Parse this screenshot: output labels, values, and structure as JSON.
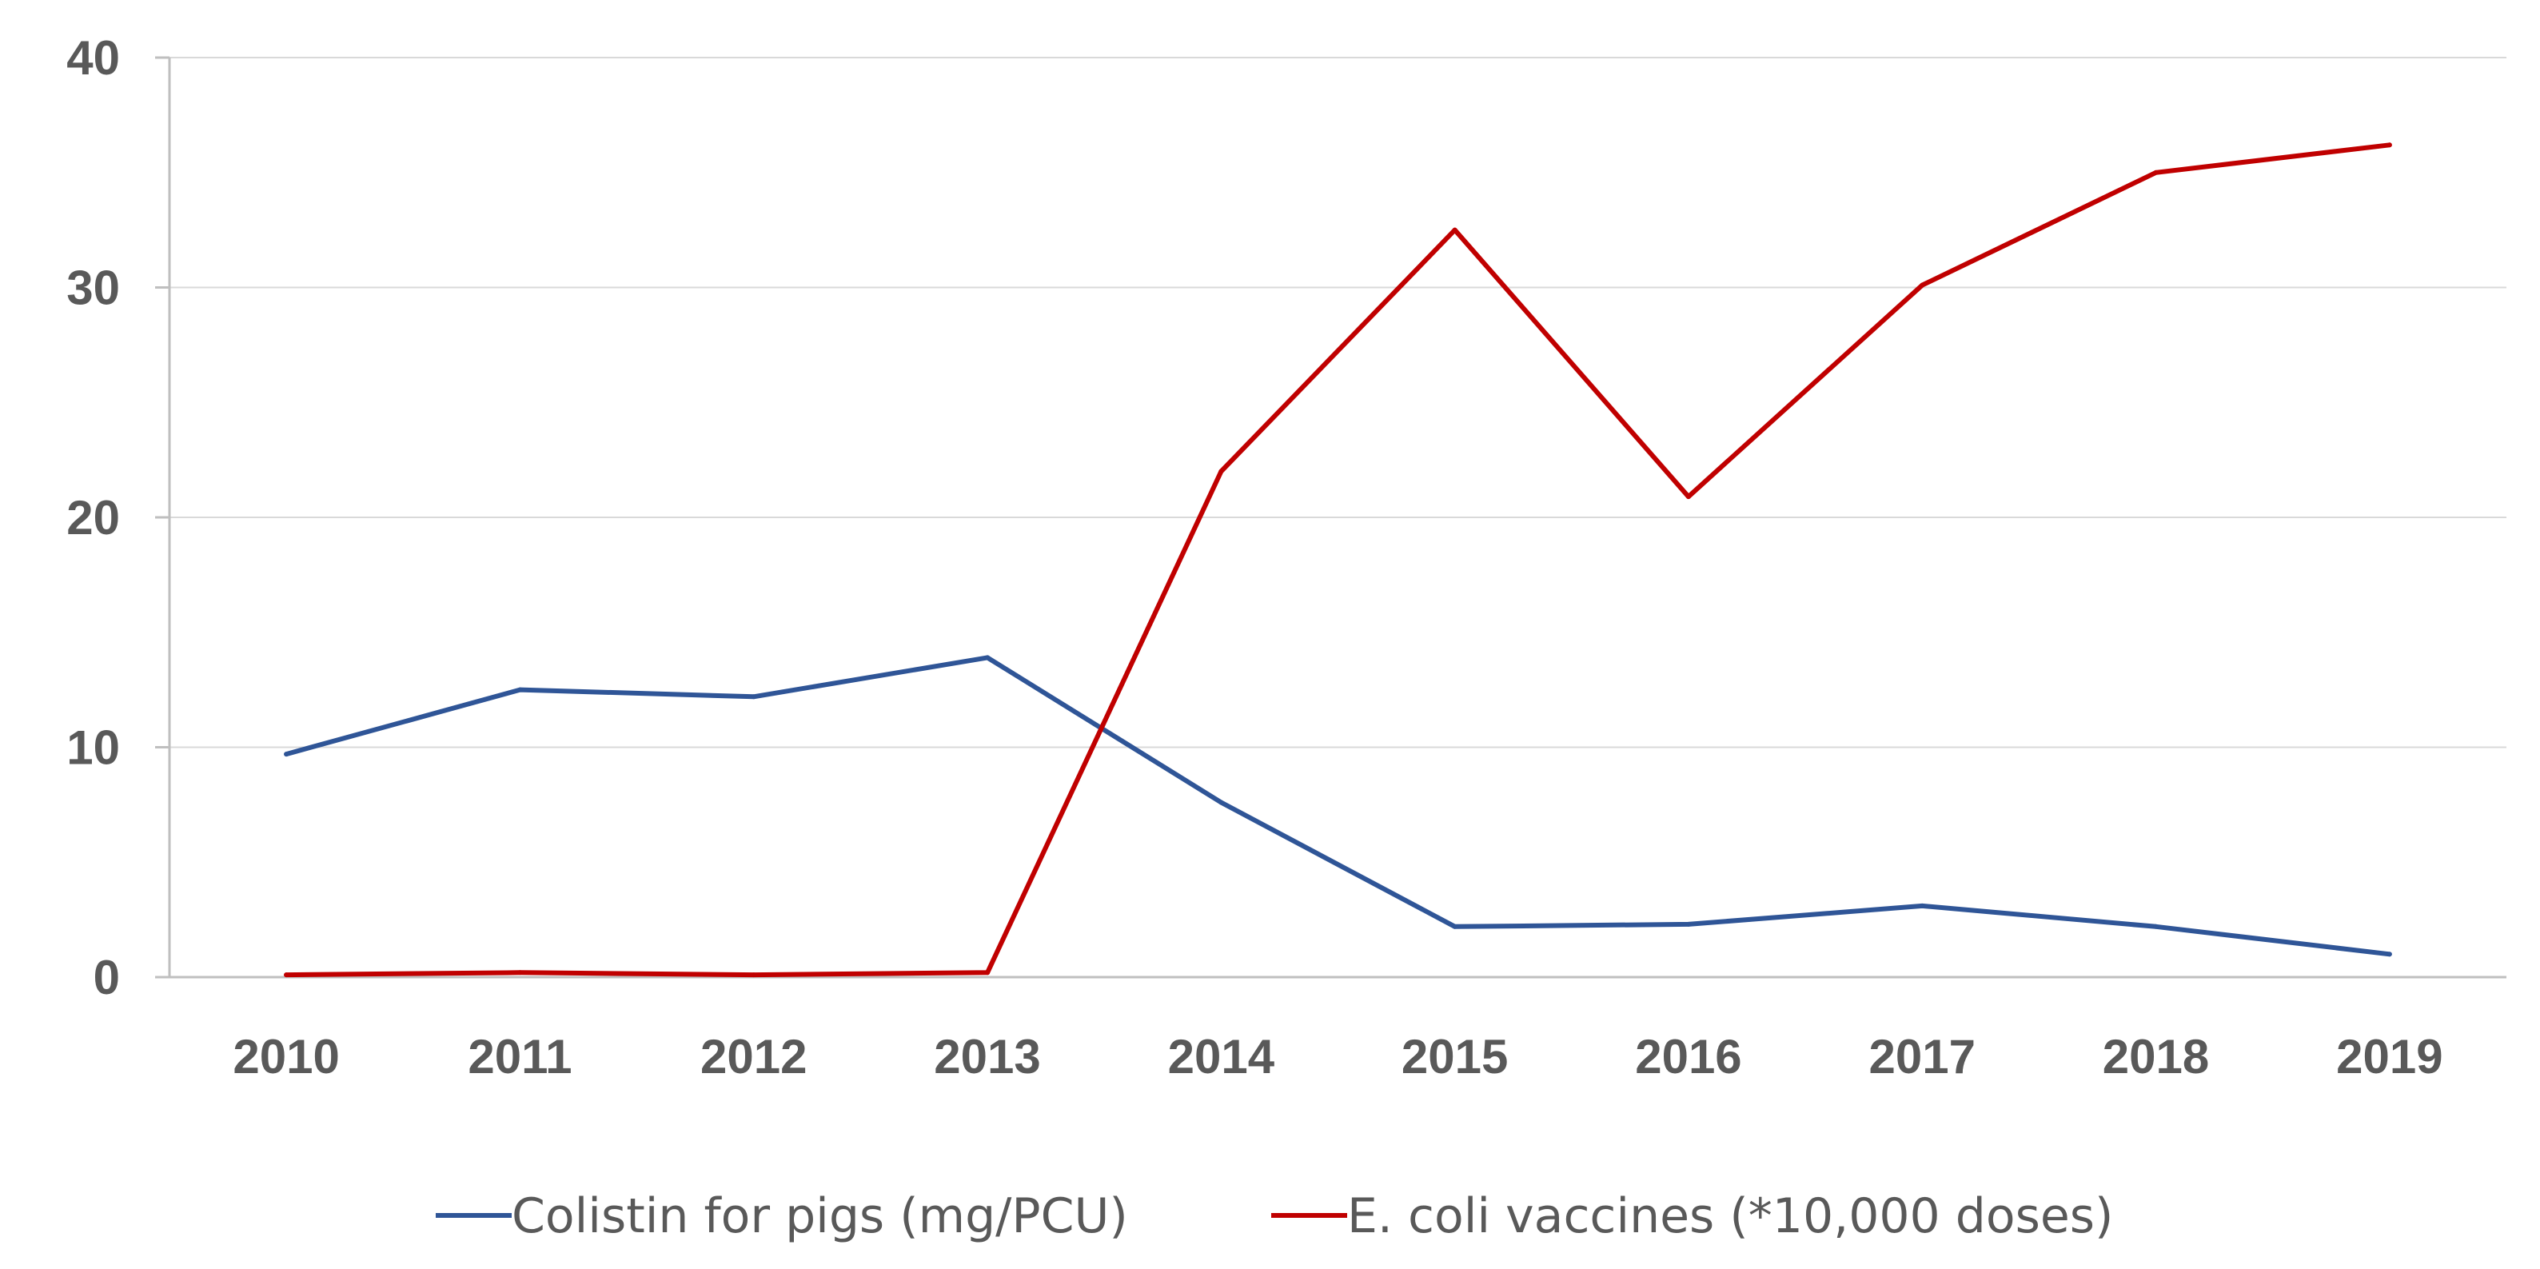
{
  "chart_data": {
    "type": "line",
    "title": "",
    "xlabel": "",
    "ylabel": "",
    "categories": [
      "2010",
      "2011",
      "2012",
      "2013",
      "2014",
      "2015",
      "2016",
      "2017",
      "2018",
      "2019"
    ],
    "ylim": [
      0,
      40
    ],
    "yticks": [
      "0",
      "10",
      "20",
      "30",
      "40"
    ],
    "grid": "horizontal",
    "legend_position": "bottom",
    "series": [
      {
        "name": "Colistin for pigs (mg/PCU)",
        "color": "#2F5597",
        "values": [
          9.7,
          12.5,
          12.2,
          13.9,
          7.6,
          2.2,
          2.3,
          3.1,
          2.2,
          1.0
        ]
      },
      {
        "name": "E. coli vaccines (*10,000 doses)",
        "color": "#C00000",
        "values": [
          0.1,
          0.2,
          0.1,
          0.2,
          22.0,
          32.5,
          20.9,
          30.1,
          35.0,
          36.2
        ]
      }
    ]
  }
}
